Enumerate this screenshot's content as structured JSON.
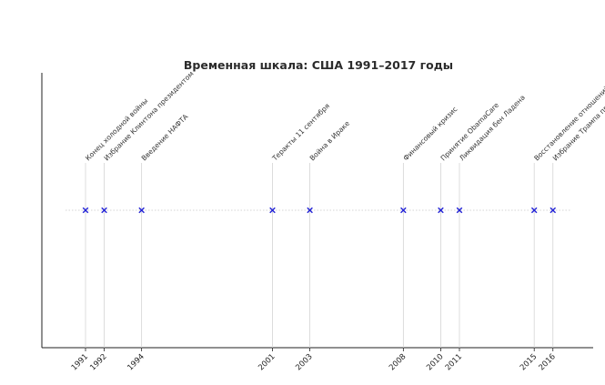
{
  "chart_data": {
    "type": "scatter",
    "title": "Временная шкала: США 1991–2017 годы",
    "xlabel": "",
    "ylabel": "",
    "xlim": [
      1989.5,
      2017.5
    ],
    "grid": false,
    "x_ticks": [
      1991,
      1992,
      1994,
      2001,
      2003,
      2008,
      2010,
      2011,
      2015,
      2016
    ],
    "events": [
      {
        "year": 1992,
        "label": "Избрание Клинтона президентом"
      },
      {
        "year": 1991,
        "label": "Конец холодной войны"
      },
      {
        "year": 1994,
        "label": "Введение НАФТА"
      },
      {
        "year": 2001,
        "label": "Теракты 11 сентября"
      },
      {
        "year": 2003,
        "label": "Война в Ираке"
      },
      {
        "year": 2008,
        "label": "Финансовый кризис"
      },
      {
        "year": 2010,
        "label": "Принятие ObamaCare"
      },
      {
        "year": 2011,
        "label": "Ликвидация бен Ладена"
      },
      {
        "year": 2015,
        "label": "Восстановление отношений с Кубой"
      },
      {
        "year": 2016,
        "label": "Избрание Трампа президентом"
      }
    ],
    "colors": {
      "marker": "#2323d6",
      "event_line": "#d4d4d4",
      "baseline": "#c8c8c8",
      "text": "#222222"
    }
  }
}
